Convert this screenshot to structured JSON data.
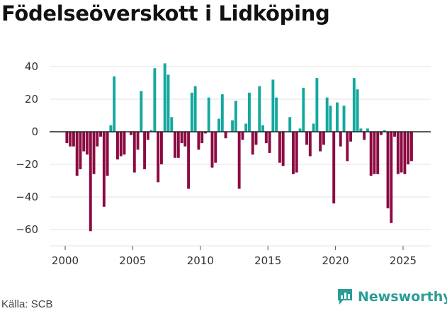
{
  "title": "Födelseöverskott i Lidköping",
  "source": "Källa: SCB",
  "brand": "Newsworthy",
  "colors": {
    "positive": "#13a89e",
    "negative": "#8c0a42",
    "grid": "#e3e3e3",
    "zero": "#222222",
    "brand": "#2a9d95"
  },
  "chart_data": {
    "type": "bar",
    "title": "Födelseöverskott i Lidköping",
    "xlabel": "",
    "ylabel": "",
    "ylim": [
      -70,
      45
    ],
    "yticks": [
      40,
      20,
      0,
      -20,
      -40,
      -60
    ],
    "xticks": [
      2000,
      2005,
      2010,
      2015,
      2020,
      2025
    ],
    "xlim": [
      1999.3,
      2026.2
    ],
    "grid": true,
    "period": "quarterly",
    "start": 2000.0,
    "values": [
      -7,
      -9,
      -9,
      -27,
      -23,
      -12,
      -14,
      -61,
      -26,
      -9,
      -3,
      -46,
      -27,
      4,
      34,
      -17,
      -15,
      -14,
      0,
      -2,
      -25,
      -11,
      25,
      -23,
      -5,
      1,
      39,
      -31,
      -20,
      42,
      35,
      9,
      -16,
      -16,
      -7,
      -9,
      -35,
      24,
      28,
      -11,
      -7,
      -1,
      21,
      -22,
      -19,
      8,
      23,
      -4,
      0,
      7,
      19,
      -35,
      -5,
      5,
      24,
      -14,
      -8,
      28,
      4,
      -7,
      -13,
      32,
      21,
      -19,
      -21,
      0,
      9,
      -26,
      -25,
      2,
      27,
      -8,
      -15,
      5,
      33,
      -12,
      -8,
      21,
      16,
      -44,
      18,
      -9,
      16,
      -18,
      -6,
      33,
      26,
      2,
      -5,
      2,
      -27,
      -26,
      -26,
      -2,
      1,
      -47,
      -56,
      -3,
      -26,
      -25,
      -26,
      -20,
      -18
    ]
  }
}
